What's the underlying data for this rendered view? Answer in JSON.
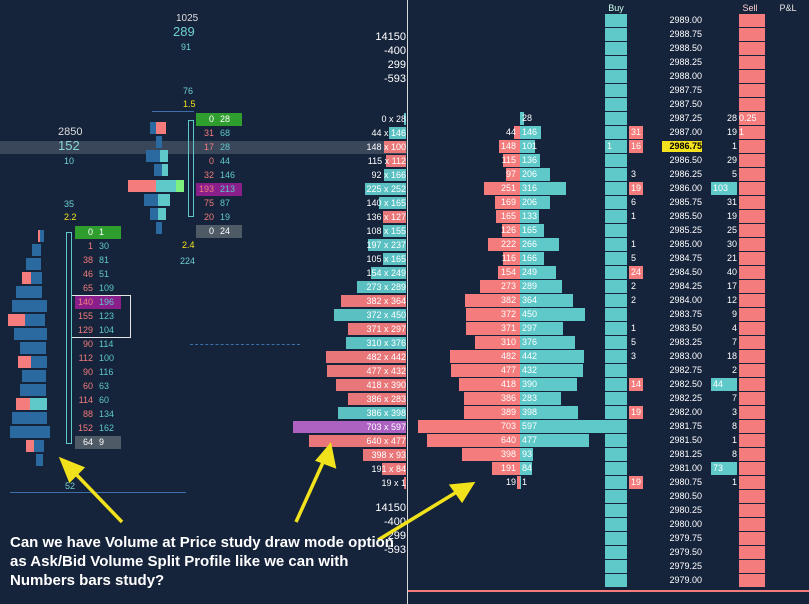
{
  "colors": {
    "background": "#15233b",
    "bid_bar": "#f47c7c",
    "ask_bar": "#5fc9c9",
    "dark_blue_bar": "#2a6aa0",
    "highlight_purple": "#b566c9",
    "green_cell": "#2f9e2f",
    "yellow_price": "#f4e21c",
    "divider": "#ffffff",
    "annotation_arrow": "#f2e21c"
  },
  "left_chart": {
    "top_stats": [
      "1025",
      "289",
      "91"
    ],
    "mid_stats": [
      "76",
      "1.5"
    ],
    "left_stats": [
      "2850",
      "152",
      "10"
    ],
    "low_stats": [
      "35",
      "2.2"
    ],
    "right_stats": [
      "2.4",
      "224"
    ],
    "bottom_stat": "52",
    "numbers_bars_upper": [
      {
        "bid": "0",
        "ask": "28",
        "style": "green"
      },
      {
        "bid": "31",
        "ask": "68",
        "style": "normal"
      },
      {
        "bid": "17",
        "ask": "28",
        "style": "current"
      },
      {
        "bid": "0",
        "ask": "44",
        "style": "normal"
      },
      {
        "bid": "32",
        "ask": "146",
        "style": "normal"
      },
      {
        "bid": "193",
        "ask": "213",
        "style": "purple"
      },
      {
        "bid": "75",
        "ask": "87",
        "style": "normal"
      },
      {
        "bid": "20",
        "ask": "19",
        "style": "normal"
      },
      {
        "bid": "0",
        "ask": "24",
        "style": "gray"
      }
    ],
    "numbers_bars_lower": [
      {
        "bid": "0",
        "ask": "1",
        "style": "green"
      },
      {
        "bid": "1",
        "ask": "30",
        "style": "normal"
      },
      {
        "bid": "38",
        "ask": "81",
        "style": "normal"
      },
      {
        "bid": "46",
        "ask": "51",
        "style": "normal"
      },
      {
        "bid": "65",
        "ask": "109",
        "style": "boxed"
      },
      {
        "bid": "140",
        "ask": "196",
        "style": "boxed-purple"
      },
      {
        "bid": "155",
        "ask": "123",
        "style": "boxed"
      },
      {
        "bid": "129",
        "ask": "104",
        "style": "normal"
      },
      {
        "bid": "90",
        "ask": "114",
        "style": "normal"
      },
      {
        "bid": "112",
        "ask": "100",
        "style": "normal"
      },
      {
        "bid": "90",
        "ask": "116",
        "style": "normal"
      },
      {
        "bid": "60",
        "ask": "63",
        "style": "normal"
      },
      {
        "bid": "114",
        "ask": "60",
        "style": "normal"
      },
      {
        "bid": "88",
        "ask": "134",
        "style": "normal"
      },
      {
        "bid": "152",
        "ask": "162",
        "style": "normal"
      },
      {
        "bid": "64",
        "ask": "9",
        "style": "gray"
      }
    ]
  },
  "vap_column": {
    "stats_top": [
      "14150",
      "-400",
      "299",
      "-593"
    ],
    "stats_bottom": [
      "14150",
      "-400",
      "299",
      "-593"
    ],
    "rows": [
      "0 x 28",
      "44 x 146",
      "148 x 100",
      "115 x 112",
      "92 x 166",
      "225 x 252",
      "140 x 165",
      "136 x 127",
      "108 x 155",
      "197 x 237",
      "105 x 165",
      "154 x 249",
      "273 x 289",
      "382 x 364",
      "372 x 450",
      "371 x 297",
      "310 x 376",
      "482 x 442",
      "477 x 432",
      "418 x 390",
      "386 x 283",
      "386 x 398",
      "703 x 597",
      "640 x 477",
      "398 x 93",
      "191 x 84",
      "19 x 1"
    ]
  },
  "ladder": {
    "headers": {
      "buy": "Buy",
      "sell": "Sell",
      "pnl": "P&L"
    },
    "current_price": "2986.75",
    "rows": [
      {
        "price": "2989.00",
        "bid": "",
        "ask": "",
        "buy": "",
        "sell": "",
        "trades": ""
      },
      {
        "price": "2988.75",
        "bid": "",
        "ask": "",
        "buy": "",
        "sell": "",
        "trades": ""
      },
      {
        "price": "2988.50",
        "bid": "",
        "ask": "",
        "buy": "",
        "sell": "",
        "trades": ""
      },
      {
        "price": "2988.25",
        "bid": "",
        "ask": "",
        "buy": "",
        "sell": "",
        "trades": ""
      },
      {
        "price": "2988.00",
        "bid": "",
        "ask": "",
        "buy": "",
        "sell": "",
        "trades": ""
      },
      {
        "price": "2987.75",
        "bid": "",
        "ask": "",
        "buy": "",
        "sell": "",
        "trades": ""
      },
      {
        "price": "2987.50",
        "bid": "",
        "ask": "",
        "buy": "",
        "sell": "",
        "trades": ""
      },
      {
        "price": "2987.25",
        "bid": "",
        "ask": "28",
        "buy": "",
        "sell": "0.25",
        "trades": "28"
      },
      {
        "price": "2987.00",
        "bid": "44",
        "ask": "146",
        "buy": "31",
        "sell": "1",
        "trades": "19"
      },
      {
        "price": "2986.75",
        "bid": "148",
        "ask": "101",
        "buy": "16",
        "sell": "",
        "trades": "1",
        "buy_left": "1"
      },
      {
        "price": "2986.50",
        "bid": "115",
        "ask": "136",
        "buy": "",
        "sell": "",
        "trades": "29"
      },
      {
        "price": "2986.25",
        "bid": "97",
        "ask": "206",
        "buy": "3",
        "sell": "",
        "trades": "5"
      },
      {
        "price": "2986.00",
        "bid": "251",
        "ask": "316",
        "buy": "19",
        "sell": "103",
        "trades": ""
      },
      {
        "price": "2985.75",
        "bid": "169",
        "ask": "206",
        "buy": "6",
        "sell": "",
        "trades": "31"
      },
      {
        "price": "2985.50",
        "bid": "165",
        "ask": "133",
        "buy": "1",
        "sell": "",
        "trades": "19"
      },
      {
        "price": "2985.25",
        "bid": "126",
        "ask": "165",
        "buy": "",
        "sell": "",
        "trades": "25"
      },
      {
        "price": "2985.00",
        "bid": "222",
        "ask": "266",
        "buy": "1",
        "sell": "",
        "trades": "30"
      },
      {
        "price": "2984.75",
        "bid": "116",
        "ask": "166",
        "buy": "5",
        "sell": "",
        "trades": "21"
      },
      {
        "price": "2984.50",
        "bid": "154",
        "ask": "249",
        "buy": "24",
        "sell": "",
        "trades": "40"
      },
      {
        "price": "2984.25",
        "bid": "273",
        "ask": "289",
        "buy": "2",
        "sell": "",
        "trades": "17"
      },
      {
        "price": "2984.00",
        "bid": "382",
        "ask": "364",
        "buy": "2",
        "sell": "",
        "trades": "12"
      },
      {
        "price": "2983.75",
        "bid": "372",
        "ask": "450",
        "buy": "",
        "sell": "",
        "trades": "9"
      },
      {
        "price": "2983.50",
        "bid": "371",
        "ask": "297",
        "buy": "1",
        "sell": "",
        "trades": "4"
      },
      {
        "price": "2983.25",
        "bid": "310",
        "ask": "376",
        "buy": "5",
        "sell": "",
        "trades": "7"
      },
      {
        "price": "2983.00",
        "bid": "482",
        "ask": "442",
        "buy": "3",
        "sell": "",
        "trades": "18"
      },
      {
        "price": "2982.75",
        "bid": "477",
        "ask": "432",
        "buy": "",
        "sell": "",
        "trades": "2"
      },
      {
        "price": "2982.50",
        "bid": "418",
        "ask": "390",
        "buy": "14",
        "sell": "44",
        "trades": ""
      },
      {
        "price": "2982.25",
        "bid": "386",
        "ask": "283",
        "buy": "",
        "sell": "",
        "trades": "7"
      },
      {
        "price": "2982.00",
        "bid": "389",
        "ask": "398",
        "buy": "19",
        "sell": "",
        "trades": "3"
      },
      {
        "price": "2981.75",
        "bid": "703",
        "ask": "597",
        "buy": "",
        "sell": "",
        "trades": "8"
      },
      {
        "price": "2981.50",
        "bid": "640",
        "ask": "477",
        "buy": "",
        "sell": "",
        "trades": "1"
      },
      {
        "price": "2981.25",
        "bid": "398",
        "ask": "93",
        "buy": "",
        "sell": "",
        "trades": "8"
      },
      {
        "price": "2981.00",
        "bid": "191",
        "ask": "84",
        "buy": "",
        "sell": "73",
        "trades": ""
      },
      {
        "price": "2980.75",
        "bid": "19",
        "ask": "1",
        "buy": "19",
        "sell": "",
        "trades": "1"
      },
      {
        "price": "2980.50",
        "bid": "",
        "ask": "",
        "buy": "",
        "sell": "",
        "trades": ""
      },
      {
        "price": "2980.25",
        "bid": "",
        "ask": "",
        "buy": "",
        "sell": "",
        "trades": ""
      },
      {
        "price": "2980.00",
        "bid": "",
        "ask": "",
        "buy": "",
        "sell": "",
        "trades": ""
      },
      {
        "price": "2979.75",
        "bid": "",
        "ask": "",
        "buy": "",
        "sell": "",
        "trades": ""
      },
      {
        "price": "2979.50",
        "bid": "",
        "ask": "",
        "buy": "",
        "sell": "",
        "trades": ""
      },
      {
        "price": "2979.25",
        "bid": "",
        "ask": "",
        "buy": "",
        "sell": "",
        "trades": ""
      },
      {
        "price": "2979.00",
        "bid": "",
        "ask": "",
        "buy": "",
        "sell": "",
        "trades": ""
      }
    ]
  },
  "annotation": {
    "text": "Can we have Volume at Price study draw mode option as Ask/Bid Volume Split Profile like we can with Numbers bars study?"
  }
}
